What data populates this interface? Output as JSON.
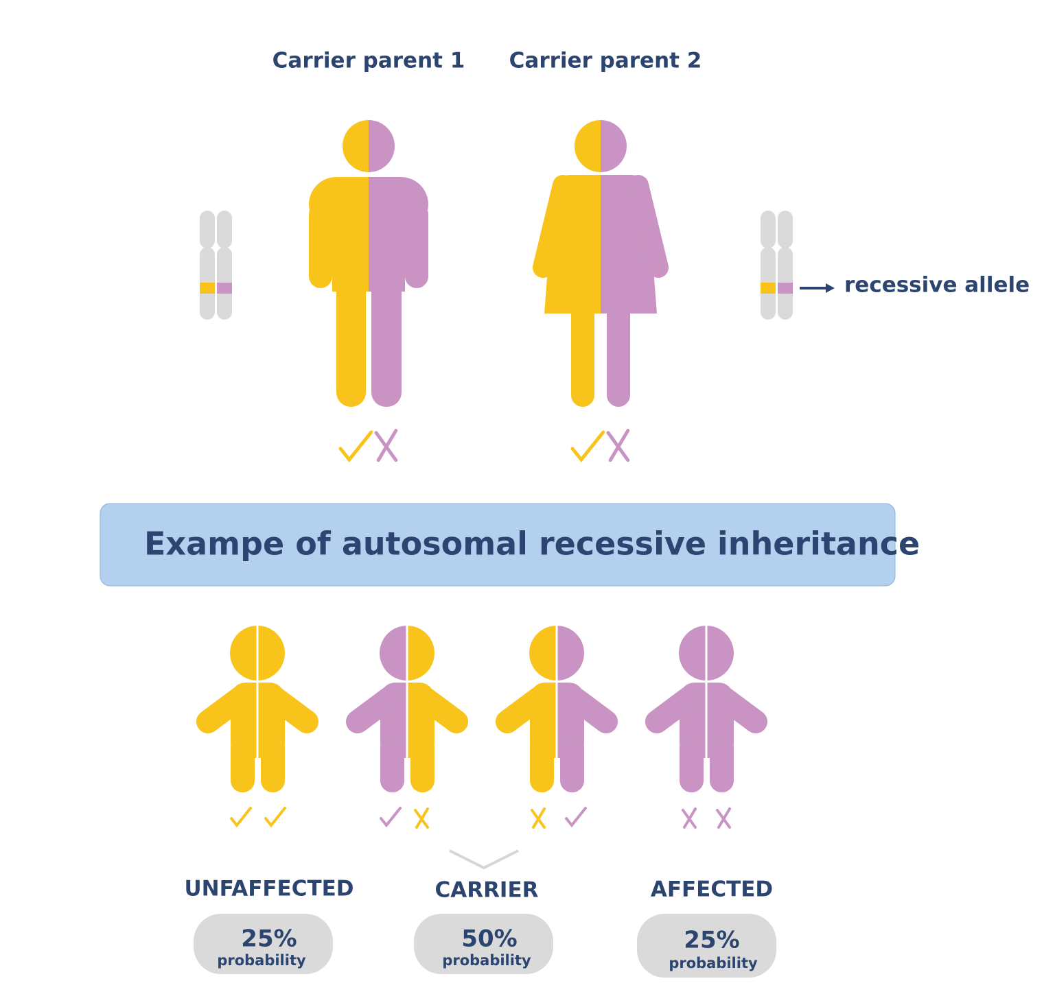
{
  "parents": [
    {
      "label": "Carrier parent 1"
    },
    {
      "label": "Carrier parent 2"
    }
  ],
  "legend": {
    "label": "recessive allele"
  },
  "banner": {
    "title": "Exampe of autosomal recessive inheritance"
  },
  "outcomes": [
    {
      "label": "UNFAFFECTED",
      "percent": "25%",
      "caption": "probability"
    },
    {
      "label": "CARRIER",
      "percent": "50%",
      "caption": "probability"
    },
    {
      "label": "AFFECTED",
      "percent": "25%",
      "caption": "probability"
    }
  ]
}
